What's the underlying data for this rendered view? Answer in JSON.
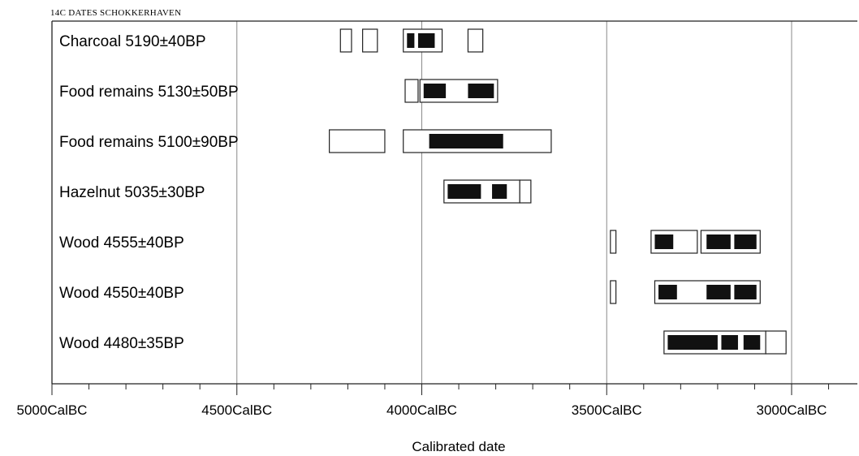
{
  "chart_data": {
    "type": "bar",
    "title": "14C DATES SCHOKKERHAVEN",
    "xlabel": "Calibrated date",
    "x_axis": {
      "unit": "CalBC",
      "direction": "descending",
      "xlim": [
        5000,
        2825
      ],
      "major_ticks": [
        5000,
        4500,
        4000,
        3500,
        3000
      ],
      "tick_labels": [
        "5000CalBC",
        "4500CalBC",
        "4000CalBC",
        "3500CalBC",
        "3000CalBC"
      ],
      "minor_tick_step": 100,
      "gridlines": [
        4500,
        4000,
        3500,
        3000
      ]
    },
    "samples": [
      {
        "label": "Charcoal  5190±40BP",
        "outer_ranges": [
          [
            4220,
            4190
          ],
          [
            4160,
            4120
          ],
          [
            4050,
            3945
          ],
          [
            3875,
            3835
          ]
        ],
        "inner_ranges": [
          [
            4040,
            4020
          ],
          [
            4010,
            3965
          ]
        ]
      },
      {
        "label": "Food remains  5130±50BP",
        "outer_ranges": [
          [
            4045,
            4010
          ],
          [
            4005,
            3795
          ]
        ],
        "inner_ranges": [
          [
            3995,
            3935
          ],
          [
            3875,
            3805
          ]
        ]
      },
      {
        "label": "Food remains  5100±90BP",
        "outer_ranges": [
          [
            4250,
            4100
          ],
          [
            4050,
            3650
          ]
        ],
        "inner_ranges": [
          [
            3980,
            3780
          ]
        ]
      },
      {
        "label": "Hazelnut  5035±30BP",
        "outer_ranges": [
          [
            3940,
            3735
          ],
          [
            3735,
            3705
          ]
        ],
        "inner_ranges": [
          [
            3930,
            3840
          ],
          [
            3810,
            3770
          ]
        ]
      },
      {
        "label": "Wood  4555±40BP",
        "outer_ranges": [
          [
            3490,
            3475
          ],
          [
            3380,
            3255
          ],
          [
            3245,
            3085
          ]
        ],
        "inner_ranges": [
          [
            3370,
            3320
          ],
          [
            3230,
            3165
          ],
          [
            3155,
            3095
          ]
        ]
      },
      {
        "label": "Wood  4550±40BP",
        "outer_ranges": [
          [
            3490,
            3475
          ],
          [
            3370,
            3085
          ]
        ],
        "inner_ranges": [
          [
            3360,
            3310
          ],
          [
            3230,
            3165
          ],
          [
            3155,
            3095
          ]
        ]
      },
      {
        "label": "Wood  4480±35BP",
        "outer_ranges": [
          [
            3345,
            3070
          ],
          [
            3070,
            3015
          ]
        ],
        "inner_ranges": [
          [
            3335,
            3200
          ],
          [
            3190,
            3145
          ],
          [
            3130,
            3085
          ]
        ]
      }
    ]
  }
}
